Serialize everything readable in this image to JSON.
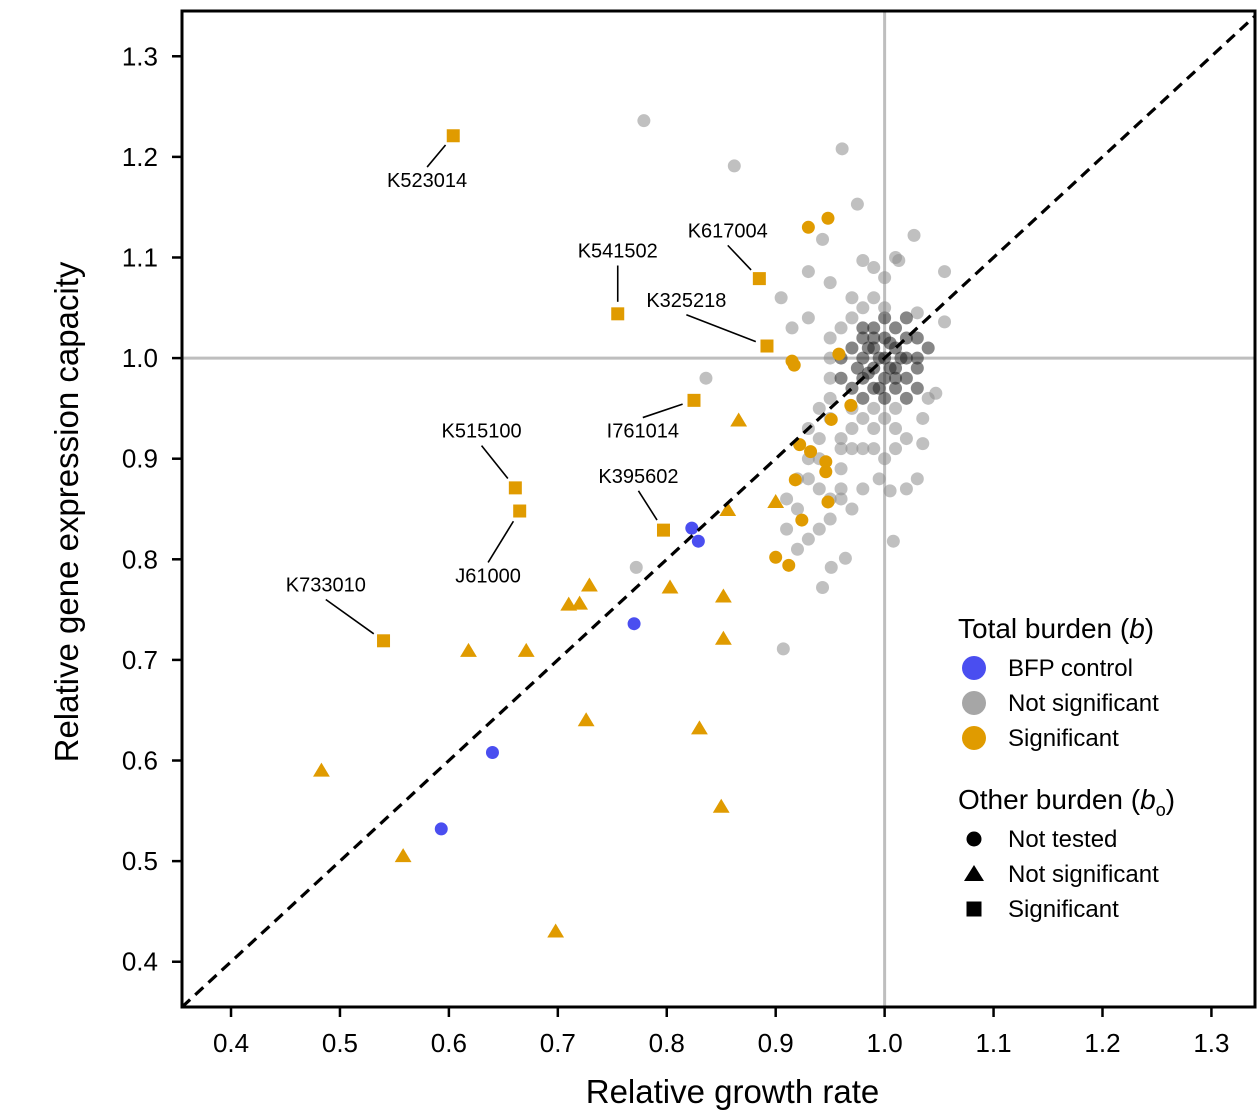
{
  "chart_data": {
    "type": "scatter",
    "xlabel": "Relative growth rate",
    "ylabel": "Relative gene expression capacity",
    "xlim": [
      0.355,
      1.34
    ],
    "ylim": [
      0.355,
      1.345
    ],
    "xticks": [
      0.4,
      0.5,
      0.6,
      0.7,
      0.8,
      0.9,
      1.0,
      1.1,
      1.2,
      1.3
    ],
    "xtick_labels": [
      "0.4",
      "0.5",
      "0.6",
      "0.7",
      "0.8",
      "0.9",
      "1.0",
      "1.1",
      "1.2",
      "1.3"
    ],
    "yticks": [
      0.4,
      0.5,
      0.6,
      0.7,
      0.8,
      0.9,
      1.0,
      1.1,
      1.2,
      1.3
    ],
    "ytick_labels": [
      "0.4",
      "0.5",
      "0.6",
      "0.7",
      "0.8",
      "0.9",
      "1.0",
      "1.1",
      "1.2",
      "1.3"
    ],
    "reference_lines": {
      "vertical_x": 1.0,
      "horizontal_y": 1.0,
      "diagonal": "y = x"
    },
    "colors": {
      "bfp": "#4a4ef0",
      "not_significant": "#a6a6a6",
      "significant": "#e09b00",
      "reference": "#bebebe",
      "diagonal": "#000000"
    },
    "series": [
      {
        "name": "BFP control",
        "marker": "circle",
        "color": "#4a4ef0",
        "points": [
          [
            0.593,
            0.532
          ],
          [
            0.64,
            0.608
          ],
          [
            0.77,
            0.736
          ],
          [
            0.823,
            0.831
          ],
          [
            0.829,
            0.818
          ]
        ]
      },
      {
        "name": "Not significant / Not tested",
        "marker": "circle",
        "color": "#a6a6a6",
        "points": [
          [
            0.779,
            1.236
          ],
          [
            0.862,
            1.191
          ],
          [
            0.961,
            1.208
          ],
          [
            0.975,
            1.153
          ],
          [
            1.027,
            1.122
          ],
          [
            0.836,
            0.98
          ],
          [
            0.772,
            0.792
          ],
          [
            0.907,
            0.711
          ],
          [
            0.943,
            0.772
          ],
          [
            1.008,
            0.818
          ],
          [
            0.964,
            0.801
          ],
          [
            0.951,
            0.792
          ],
          [
            1.055,
            1.086
          ],
          [
            1.055,
            1.036
          ],
          [
            1.047,
            0.965
          ],
          [
            0.93,
            1.086
          ],
          [
            0.943,
            1.118
          ],
          [
            0.98,
            1.097
          ],
          [
            0.99,
            1.09
          ],
          [
            1.013,
            1.097
          ],
          [
            0.905,
            1.06
          ],
          [
            0.915,
            1.03
          ],
          [
            0.93,
            1.04
          ],
          [
            0.95,
            1.075
          ],
          [
            0.97,
            1.06
          ],
          [
            0.99,
            1.06
          ],
          [
            1.03,
            1.045
          ],
          [
            1.04,
            1.01
          ],
          [
            1.03,
            0.99
          ],
          [
            1.04,
            0.96
          ],
          [
            1.035,
            0.94
          ],
          [
            1.035,
            0.915
          ],
          [
            1.03,
            0.88
          ],
          [
            1.02,
            0.87
          ],
          [
            1.005,
            0.868
          ],
          [
            0.995,
            0.88
          ],
          [
            0.98,
            0.87
          ],
          [
            0.97,
            0.85
          ],
          [
            0.96,
            0.86
          ],
          [
            0.95,
            0.86
          ],
          [
            0.94,
            0.87
          ],
          [
            0.93,
            0.88
          ],
          [
            0.92,
            0.88
          ],
          [
            0.91,
            0.86
          ],
          [
            0.92,
            0.85
          ],
          [
            0.91,
            0.83
          ],
          [
            0.92,
            0.81
          ],
          [
            0.93,
            0.82
          ],
          [
            0.94,
            0.83
          ],
          [
            0.95,
            0.84
          ],
          [
            0.96,
            0.87
          ],
          [
            0.96,
            0.89
          ],
          [
            0.96,
            0.92
          ],
          [
            0.95,
            0.94
          ],
          [
            0.94,
            0.92
          ],
          [
            0.93,
            0.93
          ],
          [
            0.93,
            0.9
          ],
          [
            0.94,
            0.9
          ],
          [
            0.94,
            0.95
          ],
          [
            0.95,
            0.96
          ],
          [
            0.95,
            0.98
          ],
          [
            0.95,
            1.0
          ],
          [
            0.95,
            1.02
          ],
          [
            0.96,
            1.03
          ],
          [
            0.97,
            1.04
          ],
          [
            0.98,
            1.05
          ],
          [
            0.98,
            1.03
          ],
          [
            0.97,
            1.01
          ],
          [
            0.96,
            1.0
          ],
          [
            0.96,
            0.98
          ],
          [
            0.97,
            0.97
          ],
          [
            0.97,
            0.95
          ],
          [
            0.97,
            0.93
          ],
          [
            0.98,
            0.94
          ],
          [
            0.98,
            0.96
          ],
          [
            0.98,
            0.98
          ],
          [
            0.98,
            1.0
          ],
          [
            0.98,
            1.02
          ],
          [
            0.99,
            1.03
          ],
          [
            0.99,
            1.01
          ],
          [
            0.99,
            0.99
          ],
          [
            0.99,
            0.97
          ],
          [
            0.99,
            0.95
          ],
          [
            0.99,
            0.93
          ],
          [
            1.0,
            0.94
          ],
          [
            1.0,
            0.96
          ],
          [
            1.0,
            0.98
          ],
          [
            1.0,
            1.0
          ],
          [
            1.0,
            1.02
          ],
          [
            1.0,
            1.04
          ],
          [
            1.01,
            1.03
          ],
          [
            1.01,
            1.01
          ],
          [
            1.01,
            0.99
          ],
          [
            1.01,
            0.97
          ],
          [
            1.01,
            0.95
          ],
          [
            1.02,
            0.96
          ],
          [
            1.02,
            0.98
          ],
          [
            1.02,
            1.0
          ],
          [
            1.02,
            1.02
          ],
          [
            1.02,
            1.04
          ],
          [
            1.03,
            1.02
          ],
          [
            1.03,
            1.0
          ],
          [
            1.03,
            0.97
          ],
          [
            1.01,
            0.93
          ],
          [
            1.02,
            0.92
          ],
          [
            1.01,
            0.91
          ],
          [
            1.0,
            0.9
          ],
          [
            0.99,
            0.91
          ],
          [
            0.98,
            0.91
          ],
          [
            0.97,
            0.91
          ],
          [
            0.96,
            0.91
          ],
          [
            0.995,
            1.0
          ],
          [
            1.005,
            0.99
          ],
          [
            0.985,
            0.985
          ],
          [
            1.005,
            1.015
          ],
          [
            0.995,
            0.97
          ],
          [
            0.99,
            1.02
          ],
          [
            1.01,
            0.98
          ],
          [
            0.975,
            0.99
          ],
          [
            0.985,
            1.01
          ],
          [
            1.015,
            1.0
          ],
          [
            1.0,
            1.08
          ],
          [
            1.01,
            1.1
          ],
          [
            1.0,
            1.05
          ]
        ]
      },
      {
        "name": "Significant / Not tested",
        "marker": "circle",
        "color": "#e09b00",
        "points": [
          [
            0.93,
            1.13
          ],
          [
            0.948,
            1.139
          ],
          [
            0.915,
            0.997
          ],
          [
            0.917,
            0.993
          ],
          [
            0.958,
            1.004
          ],
          [
            0.969,
            0.953
          ],
          [
            0.951,
            0.939
          ],
          [
            0.922,
            0.914
          ],
          [
            0.932,
            0.907
          ],
          [
            0.946,
            0.897
          ],
          [
            0.946,
            0.887
          ],
          [
            0.918,
            0.879
          ],
          [
            0.948,
            0.857
          ],
          [
            0.924,
            0.839
          ],
          [
            0.9,
            0.802
          ],
          [
            0.912,
            0.794
          ]
        ]
      },
      {
        "name": "Significant / Not significant",
        "marker": "triangle",
        "color": "#e09b00",
        "points": [
          [
            0.866,
            0.938
          ],
          [
            0.9,
            0.857
          ],
          [
            0.856,
            0.849
          ],
          [
            0.803,
            0.772
          ],
          [
            0.729,
            0.774
          ],
          [
            0.71,
            0.755
          ],
          [
            0.72,
            0.756
          ],
          [
            0.852,
            0.763
          ],
          [
            0.852,
            0.721
          ],
          [
            0.618,
            0.709
          ],
          [
            0.671,
            0.709
          ],
          [
            0.726,
            0.64
          ],
          [
            0.83,
            0.632
          ],
          [
            0.483,
            0.59
          ],
          [
            0.85,
            0.554
          ],
          [
            0.558,
            0.505
          ],
          [
            0.698,
            0.43
          ]
        ]
      },
      {
        "name": "Significant / Significant",
        "marker": "square",
        "color": "#e09b00",
        "points": [
          [
            0.604,
            1.221
          ],
          [
            0.755,
            1.044
          ],
          [
            0.885,
            1.079
          ],
          [
            0.892,
            1.012
          ],
          [
            0.825,
            0.958
          ],
          [
            0.661,
            0.871
          ],
          [
            0.665,
            0.848
          ],
          [
            0.797,
            0.829
          ],
          [
            0.54,
            0.719
          ]
        ]
      }
    ],
    "annotations": [
      {
        "label": "K523014",
        "x": 0.604,
        "y": 1.221,
        "label_x": 0.58,
        "label_y": 1.17,
        "anchor": "middle"
      },
      {
        "label": "K541502",
        "x": 0.755,
        "y": 1.044,
        "label_x": 0.755,
        "label_y": 1.1,
        "anchor": "middle"
      },
      {
        "label": "K617004",
        "x": 0.885,
        "y": 1.079,
        "label_x": 0.856,
        "label_y": 1.12,
        "anchor": "middle"
      },
      {
        "label": "K325218",
        "x": 0.892,
        "y": 1.012,
        "label_x": 0.818,
        "label_y": 1.051,
        "anchor": "middle"
      },
      {
        "label": "I761014",
        "x": 0.825,
        "y": 0.958,
        "label_x": 0.778,
        "label_y": 0.921,
        "anchor": "middle"
      },
      {
        "label": "K515100",
        "x": 0.661,
        "y": 0.871,
        "label_x": 0.63,
        "label_y": 0.921,
        "anchor": "middle"
      },
      {
        "label": "K395602",
        "x": 0.797,
        "y": 0.829,
        "label_x": 0.774,
        "label_y": 0.876,
        "anchor": "middle"
      },
      {
        "label": "J61000",
        "x": 0.665,
        "y": 0.848,
        "label_x": 0.636,
        "label_y": 0.777,
        "anchor": "middle"
      },
      {
        "label": "K733010",
        "x": 0.54,
        "y": 0.719,
        "label_x": 0.487,
        "label_y": 0.768,
        "anchor": "middle"
      }
    ],
    "legend": {
      "position": "bottom-right",
      "groups": [
        {
          "title_main": "Total burden (",
          "title_symbol": "b",
          "title_sub": "",
          "title_end": ")",
          "items": [
            {
              "label": "BFP control",
              "marker": "circle",
              "color": "#4a4ef0"
            },
            {
              "label": "Not significant",
              "marker": "circle",
              "color": "#a6a6a6"
            },
            {
              "label": "Significant",
              "marker": "circle",
              "color": "#e09b00"
            }
          ]
        },
        {
          "title_main": "Other burden (",
          "title_symbol": "b",
          "title_sub": "o",
          "title_end": ")",
          "items": [
            {
              "label": "Not tested",
              "marker": "circle",
              "color": "#000000"
            },
            {
              "label": "Not significant",
              "marker": "triangle",
              "color": "#000000"
            },
            {
              "label": "Significant",
              "marker": "square",
              "color": "#000000"
            }
          ]
        }
      ]
    }
  }
}
